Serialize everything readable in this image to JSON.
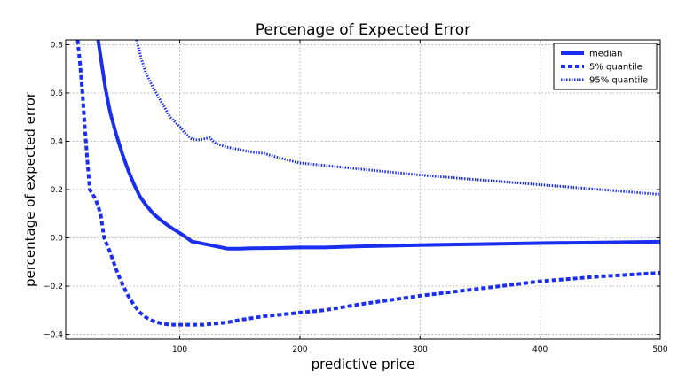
{
  "chart_data": {
    "type": "line",
    "title": "Percenage of Expected Error",
    "xlabel": "predictive price",
    "ylabel": "percentage of expected error",
    "xlim": [
      5,
      500
    ],
    "ylim": [
      -0.42,
      0.82
    ],
    "xticks": [
      100,
      200,
      300,
      400,
      500
    ],
    "yticks": [
      -0.4,
      -0.2,
      0.0,
      0.2,
      0.4,
      0.6,
      0.8
    ],
    "xtick_labels": [
      "100",
      "200",
      "300",
      "400",
      "500"
    ],
    "ytick_labels": [
      "−0.4",
      "−0.2",
      "0.0",
      "0.2",
      "0.4",
      "0.6",
      "0.8"
    ],
    "grid": true,
    "legend_position": "top-right",
    "color": "#1a2ef0",
    "series": [
      {
        "name": "median",
        "style": "solid",
        "points": [
          [
            32,
            0.82
          ],
          [
            35,
            0.72
          ],
          [
            38,
            0.62
          ],
          [
            42,
            0.52
          ],
          [
            47,
            0.43
          ],
          [
            52,
            0.35
          ],
          [
            57,
            0.28
          ],
          [
            62,
            0.22
          ],
          [
            67,
            0.17
          ],
          [
            72,
            0.135
          ],
          [
            78,
            0.1
          ],
          [
            85,
            0.07
          ],
          [
            92,
            0.045
          ],
          [
            100,
            0.02
          ],
          [
            106,
            0.0
          ],
          [
            110,
            -0.015
          ],
          [
            120,
            -0.025
          ],
          [
            130,
            -0.035
          ],
          [
            140,
            -0.045
          ],
          [
            150,
            -0.045
          ],
          [
            160,
            -0.043
          ],
          [
            180,
            -0.042
          ],
          [
            200,
            -0.04
          ],
          [
            220,
            -0.04
          ],
          [
            250,
            -0.035
          ],
          [
            300,
            -0.03
          ],
          [
            350,
            -0.026
          ],
          [
            400,
            -0.022
          ],
          [
            450,
            -0.019
          ],
          [
            500,
            -0.016
          ]
        ]
      },
      {
        "name": "5% quantile",
        "style": "dashed",
        "points": [
          [
            15,
            0.82
          ],
          [
            17,
            0.72
          ],
          [
            19,
            0.6
          ],
          [
            21,
            0.45
          ],
          [
            23,
            0.32
          ],
          [
            25,
            0.2
          ],
          [
            30,
            0.16
          ],
          [
            34,
            0.1
          ],
          [
            37,
            0.0
          ],
          [
            42,
            -0.06
          ],
          [
            47,
            -0.13
          ],
          [
            52,
            -0.19
          ],
          [
            57,
            -0.24
          ],
          [
            62,
            -0.28
          ],
          [
            67,
            -0.31
          ],
          [
            72,
            -0.33
          ],
          [
            78,
            -0.345
          ],
          [
            85,
            -0.355
          ],
          [
            92,
            -0.36
          ],
          [
            100,
            -0.36
          ],
          [
            110,
            -0.36
          ],
          [
            120,
            -0.36
          ],
          [
            130,
            -0.355
          ],
          [
            140,
            -0.35
          ],
          [
            150,
            -0.34
          ],
          [
            170,
            -0.325
          ],
          [
            200,
            -0.31
          ],
          [
            220,
            -0.3
          ],
          [
            250,
            -0.275
          ],
          [
            300,
            -0.24
          ],
          [
            350,
            -0.21
          ],
          [
            400,
            -0.18
          ],
          [
            450,
            -0.16
          ],
          [
            500,
            -0.145
          ]
        ]
      },
      {
        "name": "95% quantile",
        "style": "dotted",
        "points": [
          [
            64,
            0.82
          ],
          [
            68,
            0.74
          ],
          [
            72,
            0.68
          ],
          [
            78,
            0.62
          ],
          [
            85,
            0.56
          ],
          [
            92,
            0.5
          ],
          [
            100,
            0.46
          ],
          [
            105,
            0.43
          ],
          [
            110,
            0.41
          ],
          [
            115,
            0.405
          ],
          [
            120,
            0.41
          ],
          [
            125,
            0.415
          ],
          [
            130,
            0.39
          ],
          [
            140,
            0.375
          ],
          [
            150,
            0.365
          ],
          [
            160,
            0.355
          ],
          [
            170,
            0.35
          ],
          [
            180,
            0.335
          ],
          [
            200,
            0.31
          ],
          [
            220,
            0.3
          ],
          [
            250,
            0.285
          ],
          [
            300,
            0.26
          ],
          [
            350,
            0.24
          ],
          [
            400,
            0.22
          ],
          [
            450,
            0.2
          ],
          [
            500,
            0.18
          ]
        ]
      }
    ]
  }
}
